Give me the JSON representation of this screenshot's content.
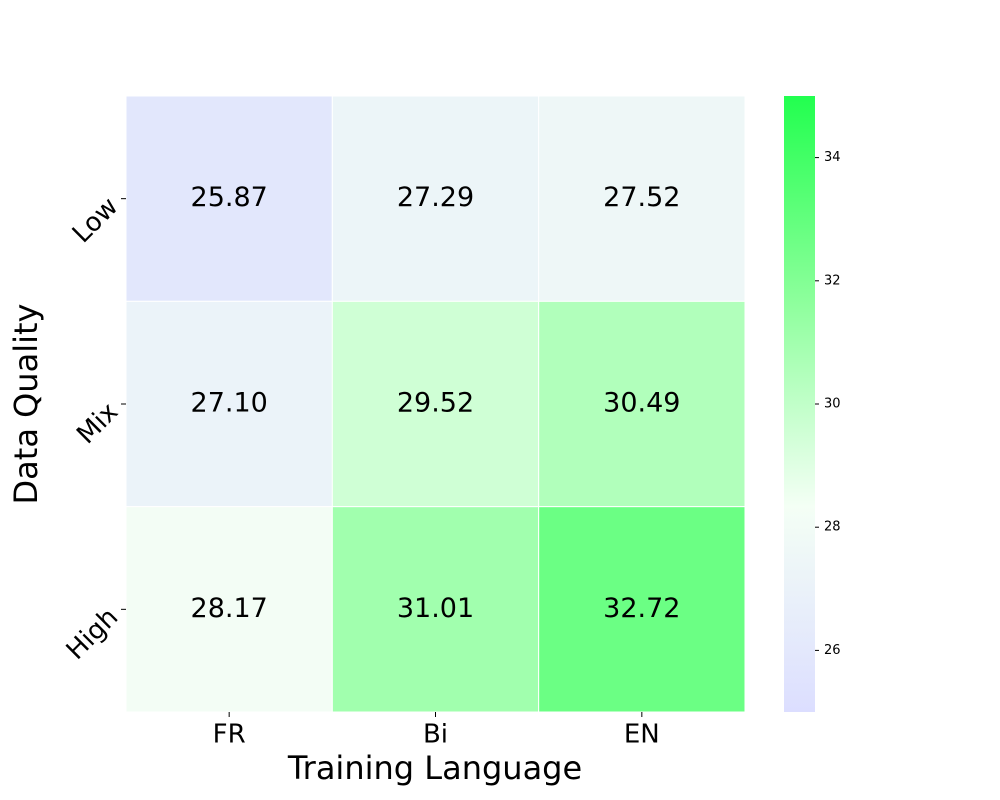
{
  "chart_data": {
    "type": "heatmap",
    "x_label": "Training Language",
    "y_label": "Data Quality",
    "x_categories": [
      "FR",
      "Bi",
      "EN"
    ],
    "y_categories": [
      "Low",
      "Mix",
      "High"
    ],
    "values": [
      [
        25.87,
        27.29,
        27.52
      ],
      [
        27.1,
        29.52,
        30.49
      ],
      [
        28.17,
        31.01,
        32.72
      ]
    ],
    "value_labels": [
      [
        "25.87",
        "27.29",
        "27.52"
      ],
      [
        "27.10",
        "29.52",
        "30.49"
      ],
      [
        "28.17",
        "31.01",
        "32.72"
      ]
    ],
    "colormap": [
      "#dcdeff",
      "#f4fff5",
      "#8dff9c",
      "#22ff4f"
    ],
    "clim": [
      25,
      35
    ],
    "cticks": [
      26,
      28,
      30,
      32,
      34
    ]
  }
}
